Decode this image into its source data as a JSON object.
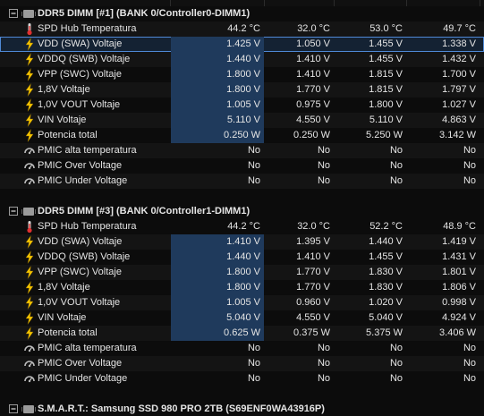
{
  "icons": {
    "temperature": "thermometer-icon",
    "voltage": "lightning-bolt-icon",
    "power": "lightning-bolt-icon",
    "status": "gauge-icon",
    "chip": "memory-chip-icon",
    "collapse": "collapse-minus-icon"
  },
  "colors": {
    "accent_highlight": "#1f3a5c",
    "selection_outline": "#4f89d6",
    "bolt": "#f5c400",
    "thermometer": "#e03030"
  },
  "groups": [
    {
      "title": "DDR5 DIMM [#1] (BANK 0/Controller0-DIMM1)",
      "rows": [
        {
          "label": "SPD Hub Temperatura",
          "icon": "temperature",
          "values": [
            "44.2 °C",
            "32.0 °C",
            "53.0 °C",
            "49.7 °C"
          ]
        },
        {
          "label": "VDD (SWA) Voltaje",
          "icon": "voltage",
          "values": [
            "1.425 V",
            "1.050 V",
            "1.455 V",
            "1.338 V"
          ],
          "selected": true
        },
        {
          "label": "VDDQ (SWB) Voltaje",
          "icon": "voltage",
          "values": [
            "1.440 V",
            "1.410 V",
            "1.455 V",
            "1.432 V"
          ]
        },
        {
          "label": "VPP (SWC) Voltaje",
          "icon": "voltage",
          "values": [
            "1.800 V",
            "1.410 V",
            "1.815 V",
            "1.700 V"
          ]
        },
        {
          "label": "1,8V Voltaje",
          "icon": "voltage",
          "values": [
            "1.800 V",
            "1.770 V",
            "1.815 V",
            "1.797 V"
          ]
        },
        {
          "label": "1,0V VOUT Voltaje",
          "icon": "voltage",
          "values": [
            "1.005 V",
            "0.975 V",
            "1.800 V",
            "1.027 V"
          ]
        },
        {
          "label": "VIN Voltaje",
          "icon": "voltage",
          "values": [
            "5.110 V",
            "4.550 V",
            "5.110 V",
            "4.863 V"
          ]
        },
        {
          "label": "Potencia total",
          "icon": "power",
          "values": [
            "0.250 W",
            "0.250 W",
            "5.250 W",
            "3.142 W"
          ]
        },
        {
          "label": "PMIC alta temperatura",
          "icon": "status",
          "values": [
            "No",
            "No",
            "No",
            "No"
          ]
        },
        {
          "label": "PMIC Over Voltage",
          "icon": "status",
          "values": [
            "No",
            "No",
            "No",
            "No"
          ]
        },
        {
          "label": "PMIC Under Voltage",
          "icon": "status",
          "values": [
            "No",
            "No",
            "No",
            "No"
          ]
        }
      ]
    },
    {
      "title": "DDR5 DIMM [#3] (BANK 0/Controller1-DIMM1)",
      "rows": [
        {
          "label": "SPD Hub Temperatura",
          "icon": "temperature",
          "values": [
            "44.2 °C",
            "32.0 °C",
            "52.2 °C",
            "48.9 °C"
          ]
        },
        {
          "label": "VDD (SWA) Voltaje",
          "icon": "voltage",
          "values": [
            "1.410 V",
            "1.395 V",
            "1.440 V",
            "1.419 V"
          ]
        },
        {
          "label": "VDDQ (SWB) Voltaje",
          "icon": "voltage",
          "values": [
            "1.440 V",
            "1.410 V",
            "1.455 V",
            "1.431 V"
          ]
        },
        {
          "label": "VPP (SWC) Voltaje",
          "icon": "voltage",
          "values": [
            "1.800 V",
            "1.770 V",
            "1.830 V",
            "1.801 V"
          ]
        },
        {
          "label": "1,8V Voltaje",
          "icon": "voltage",
          "values": [
            "1.800 V",
            "1.770 V",
            "1.830 V",
            "1.806 V"
          ]
        },
        {
          "label": "1,0V VOUT Voltaje",
          "icon": "voltage",
          "values": [
            "1.005 V",
            "0.960 V",
            "1.020 V",
            "0.998 V"
          ]
        },
        {
          "label": "VIN Voltaje",
          "icon": "voltage",
          "values": [
            "5.040 V",
            "4.550 V",
            "5.040 V",
            "4.924 V"
          ]
        },
        {
          "label": "Potencia total",
          "icon": "power",
          "values": [
            "0.625 W",
            "0.375 W",
            "5.375 W",
            "3.406 W"
          ]
        },
        {
          "label": "PMIC alta temperatura",
          "icon": "status",
          "values": [
            "No",
            "No",
            "No",
            "No"
          ]
        },
        {
          "label": "PMIC Over Voltage",
          "icon": "status",
          "values": [
            "No",
            "No",
            "No",
            "No"
          ]
        },
        {
          "label": "PMIC Under Voltage",
          "icon": "status",
          "values": [
            "No",
            "No",
            "No",
            "No"
          ]
        }
      ]
    },
    {
      "title": "S.M.A.R.T.: Samsung SSD 980 PRO 2TB (S69ENF0WA43916P)",
      "rows": []
    }
  ]
}
